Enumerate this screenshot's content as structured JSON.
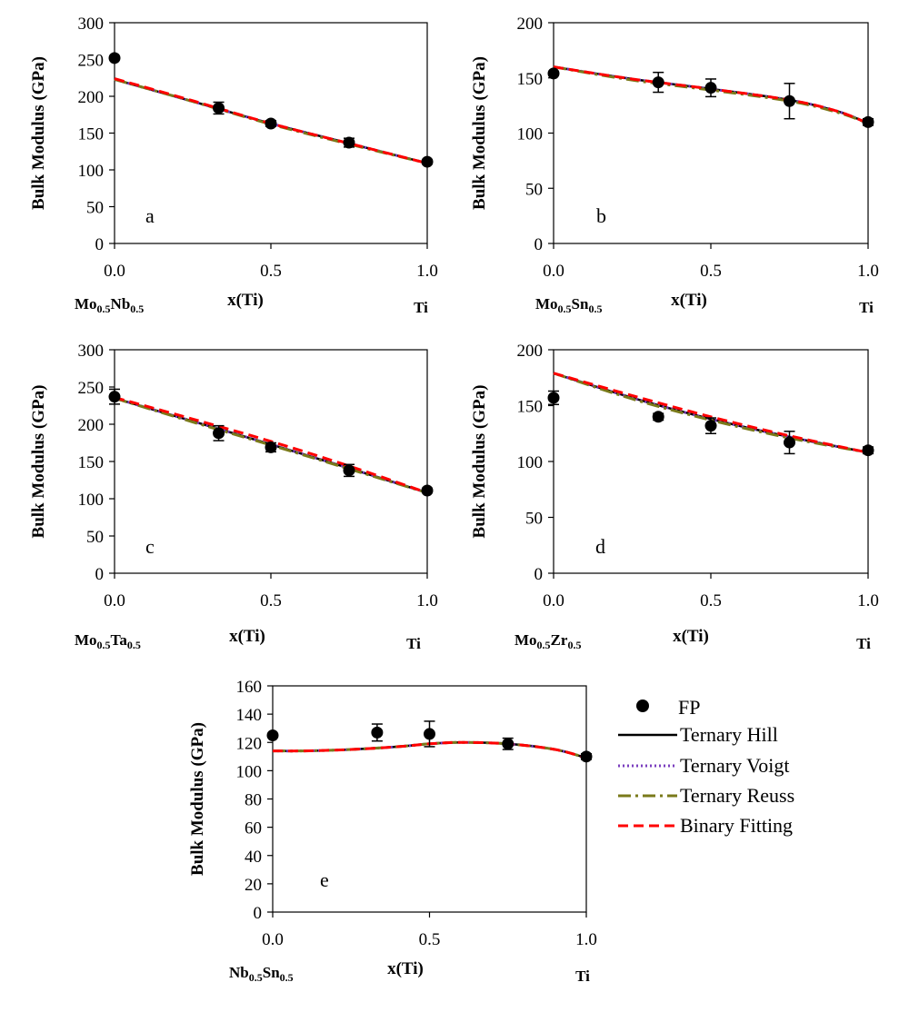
{
  "legend": {
    "fp": "FP",
    "hill": "Ternary Hill",
    "voigt": "Ternary Voigt",
    "reuss": "Ternary Reuss",
    "binary": "Binary Fitting"
  },
  "colors": {
    "hill": "#000000",
    "voigt": "#7b3fbf",
    "reuss": "#7a7a1a",
    "binary": "#ff0000",
    "marker": "#000000"
  },
  "chart_data": [
    {
      "id": "a",
      "type": "line",
      "panel_label": "a",
      "ylabel": "Bulk Modulus (GPa)",
      "xlabel": "x(Ti)",
      "left_label": {
        "base1": "Mo",
        "sub1": "0.5",
        "base2": "Nb",
        "sub2": "0.5"
      },
      "right_label": "Ti",
      "xlim": [
        0,
        1
      ],
      "ylim": [
        0,
        300
      ],
      "yticks": [
        0,
        50,
        100,
        150,
        200,
        250,
        300
      ],
      "xticks": [
        0,
        0.5,
        1
      ],
      "xtick_labels": [
        "0.0",
        "0.5",
        "1.0"
      ],
      "fp": [
        {
          "x": 0,
          "y": 252,
          "err": 0
        },
        {
          "x": 0.333,
          "y": 184,
          "err": 8
        },
        {
          "x": 0.5,
          "y": 163,
          "err": 4
        },
        {
          "x": 0.75,
          "y": 137,
          "err": 6
        },
        {
          "x": 1,
          "y": 111,
          "err": 3
        }
      ],
      "curves": {
        "hill": {
          "x": [
            0,
            0.25,
            0.5,
            0.75,
            1
          ],
          "y": [
            223,
            193,
            163,
            136,
            109
          ]
        },
        "voigt": {
          "x": [
            0,
            0.25,
            0.5,
            0.75,
            1
          ],
          "y": [
            223,
            193,
            163,
            136,
            109
          ]
        },
        "reuss": {
          "x": [
            0,
            0.25,
            0.5,
            0.75,
            1
          ],
          "y": [
            223,
            193,
            162,
            135,
            109
          ]
        },
        "binary": {
          "x": [
            0,
            0.25,
            0.5,
            0.75,
            1
          ],
          "y": [
            224,
            194,
            163,
            136,
            109
          ]
        }
      }
    },
    {
      "id": "b",
      "type": "line",
      "panel_label": "b",
      "ylabel": "Bulk Modulus (GPa)",
      "xlabel": "x(Ti)",
      "left_label": {
        "base1": "Mo",
        "sub1": "0.5",
        "base2": "Sn",
        "sub2": "0.5"
      },
      "right_label": "Ti",
      "xlim": [
        0,
        1
      ],
      "ylim": [
        0,
        200
      ],
      "yticks": [
        0,
        50,
        100,
        150,
        200
      ],
      "xticks": [
        0,
        0.5,
        1
      ],
      "xtick_labels": [
        "0.0",
        "0.5",
        "1.0"
      ],
      "fp": [
        {
          "x": 0,
          "y": 154,
          "err": 0
        },
        {
          "x": 0.333,
          "y": 146,
          "err": 9
        },
        {
          "x": 0.5,
          "y": 141,
          "err": 8
        },
        {
          "x": 0.75,
          "y": 129,
          "err": 16
        },
        {
          "x": 1,
          "y": 110,
          "err": 3
        }
      ],
      "curves": {
        "hill": {
          "x": [
            0,
            0.25,
            0.5,
            0.75,
            0.9,
            1
          ],
          "y": [
            160,
            149,
            140,
            130,
            120,
            109
          ]
        },
        "voigt": {
          "x": [
            0,
            0.25,
            0.5,
            0.75,
            0.9,
            1
          ],
          "y": [
            160,
            149,
            140,
            130,
            120,
            109
          ]
        },
        "reuss": {
          "x": [
            0,
            0.25,
            0.5,
            0.75,
            0.9,
            1
          ],
          "y": [
            160,
            148,
            139,
            129,
            119,
            109
          ]
        },
        "binary": {
          "x": [
            0,
            0.25,
            0.5,
            0.75,
            0.9,
            1
          ],
          "y": [
            160,
            149,
            140,
            130,
            120,
            109
          ]
        }
      }
    },
    {
      "id": "c",
      "type": "line",
      "panel_label": "c",
      "ylabel": "Bulk Modulus (GPa)",
      "xlabel": "x(Ti)",
      "left_label": {
        "base1": "Mo",
        "sub1": "0.5",
        "base2": "Ta",
        "sub2": "0.5"
      },
      "right_label": "Ti",
      "xlim": [
        0,
        1
      ],
      "ylim": [
        0,
        300
      ],
      "yticks": [
        0,
        50,
        100,
        150,
        200,
        250,
        300
      ],
      "xticks": [
        0,
        0.5,
        1
      ],
      "xtick_labels": [
        "0.0",
        "0.5",
        "1.0"
      ],
      "fp": [
        {
          "x": 0,
          "y": 237,
          "err": 10
        },
        {
          "x": 0.333,
          "y": 188,
          "err": 10
        },
        {
          "x": 0.5,
          "y": 169,
          "err": 6
        },
        {
          "x": 0.75,
          "y": 138,
          "err": 8
        },
        {
          "x": 1,
          "y": 111,
          "err": 3
        }
      ],
      "curves": {
        "hill": {
          "x": [
            0,
            0.25,
            0.5,
            0.75,
            1
          ],
          "y": [
            235,
            204,
            173,
            141,
            108
          ]
        },
        "voigt": {
          "x": [
            0,
            0.25,
            0.5,
            0.75,
            1
          ],
          "y": [
            235,
            204,
            173,
            141,
            108
          ]
        },
        "reuss": {
          "x": [
            0,
            0.25,
            0.5,
            0.75,
            1
          ],
          "y": [
            235,
            203,
            172,
            140,
            108
          ]
        },
        "binary": {
          "x": [
            0,
            0.25,
            0.5,
            0.75,
            1
          ],
          "y": [
            236,
            207,
            177,
            144,
            108
          ]
        }
      }
    },
    {
      "id": "d",
      "type": "line",
      "panel_label": "d",
      "ylabel": "Bulk Modulus (GPa)",
      "xlabel": "x(Ti)",
      "left_label": {
        "base1": "Mo",
        "sub1": "0.5",
        "base2": "Zr",
        "sub2": "0.5"
      },
      "right_label": "Ti",
      "xlim": [
        0,
        1
      ],
      "ylim": [
        0,
        200
      ],
      "yticks": [
        0,
        50,
        100,
        150,
        200
      ],
      "xticks": [
        0,
        0.5,
        1
      ],
      "xtick_labels": [
        "0.0",
        "0.5",
        "1.0"
      ],
      "fp": [
        {
          "x": 0,
          "y": 157,
          "err": 6
        },
        {
          "x": 0.333,
          "y": 140,
          "err": 3
        },
        {
          "x": 0.5,
          "y": 132,
          "err": 7
        },
        {
          "x": 0.75,
          "y": 117,
          "err": 10
        },
        {
          "x": 1,
          "y": 110,
          "err": 3
        }
      ],
      "curves": {
        "hill": {
          "x": [
            0,
            0.25,
            0.5,
            0.75,
            1
          ],
          "y": [
            179,
            157,
            138,
            122,
            108
          ]
        },
        "voigt": {
          "x": [
            0,
            0.25,
            0.5,
            0.75,
            1
          ],
          "y": [
            179,
            157,
            138,
            122,
            108
          ]
        },
        "reuss": {
          "x": [
            0,
            0.25,
            0.5,
            0.75,
            1
          ],
          "y": [
            179,
            156,
            137,
            121,
            108
          ]
        },
        "binary": {
          "x": [
            0,
            0.25,
            0.5,
            0.75,
            1
          ],
          "y": [
            179,
            159,
            140,
            123,
            108
          ]
        }
      }
    },
    {
      "id": "e",
      "type": "line",
      "panel_label": "e",
      "ylabel": "Bulk Modulus (GPa)",
      "xlabel": "x(Ti)",
      "left_label": {
        "base1": "Nb",
        "sub1": "0.5",
        "base2": "Sn",
        "sub2": "0.5"
      },
      "right_label": "Ti",
      "xlim": [
        0,
        1
      ],
      "ylim": [
        0,
        160
      ],
      "yticks": [
        0,
        20,
        40,
        60,
        80,
        100,
        120,
        140,
        160
      ],
      "xticks": [
        0,
        0.5,
        1
      ],
      "xtick_labels": [
        "0.0",
        "0.5",
        "1.0"
      ],
      "fp": [
        {
          "x": 0,
          "y": 125,
          "err": 0
        },
        {
          "x": 0.333,
          "y": 127,
          "err": 6
        },
        {
          "x": 0.5,
          "y": 126,
          "err": 9
        },
        {
          "x": 0.75,
          "y": 119,
          "err": 4
        },
        {
          "x": 1,
          "y": 110,
          "err": 2
        }
      ],
      "curves": {
        "hill": {
          "x": [
            0,
            0.1,
            0.25,
            0.4,
            0.5,
            0.6,
            0.75,
            0.9,
            1
          ],
          "y": [
            114,
            114,
            115,
            117,
            119,
            120,
            119,
            115,
            109
          ]
        },
        "voigt": {
          "x": [
            0,
            0.1,
            0.25,
            0.4,
            0.5,
            0.6,
            0.75,
            0.9,
            1
          ],
          "y": [
            114,
            114,
            115,
            117,
            119,
            120,
            119,
            115,
            109
          ]
        },
        "reuss": {
          "x": [
            0,
            0.1,
            0.25,
            0.4,
            0.5,
            0.6,
            0.75,
            0.9,
            1
          ],
          "y": [
            114,
            114,
            115,
            117,
            119,
            120,
            119,
            115,
            109
          ]
        },
        "binary": {
          "x": [
            0,
            0.1,
            0.25,
            0.4,
            0.5,
            0.6,
            0.75,
            0.9,
            1
          ],
          "y": [
            114,
            114,
            115,
            117,
            119,
            120,
            119,
            115,
            109
          ]
        }
      }
    }
  ]
}
